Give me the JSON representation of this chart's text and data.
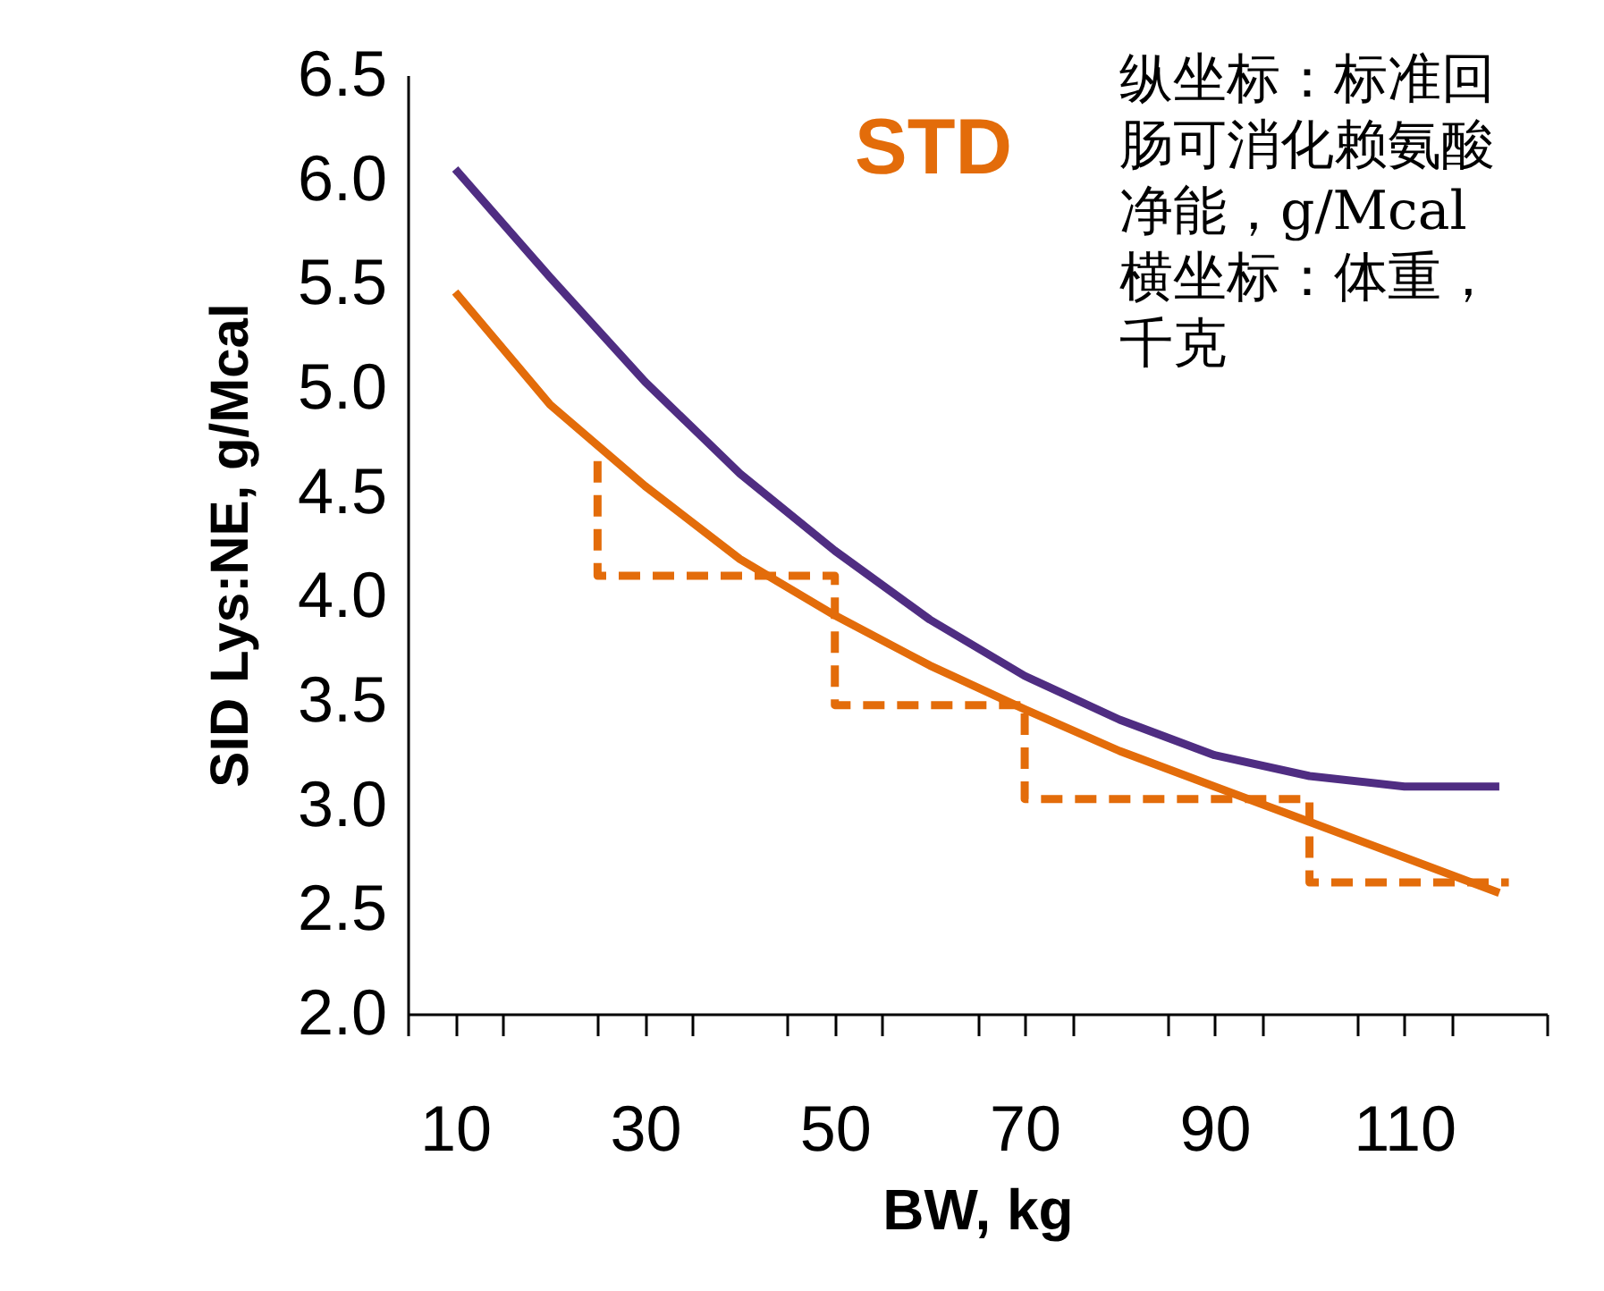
{
  "chart_data": {
    "type": "line",
    "xlabel": "BW, kg",
    "ylabel": "SID Lys:NE, g/Mcal",
    "xlim": [
      5,
      125
    ],
    "xticks": [
      {
        "value": 5,
        "label": null
      },
      10,
      {
        "value": 15,
        "label": null
      },
      {
        "value": 25,
        "label": null
      },
      30,
      {
        "value": 35,
        "label": null
      },
      {
        "value": 45,
        "label": null
      },
      50,
      {
        "value": 55,
        "label": null
      },
      {
        "value": 65,
        "label": null
      },
      70,
      {
        "value": 75,
        "label": null
      },
      {
        "value": 85,
        "label": null
      },
      90,
      {
        "value": 95,
        "label": null
      },
      {
        "value": 105,
        "label": null
      },
      110,
      {
        "value": 115,
        "label": null
      },
      {
        "value": 125,
        "label": null
      }
    ],
    "ylim": [
      2.0,
      6.5
    ],
    "yticks": [
      {
        "value": 2,
        "label": "2.0"
      },
      {
        "value": 2.5,
        "label": "2.5"
      },
      {
        "value": 3,
        "label": "3.0"
      },
      {
        "value": 3.5,
        "label": "3.5"
      },
      {
        "value": 4,
        "label": "4.0"
      },
      {
        "value": 4.5,
        "label": "4.5"
      },
      {
        "value": 5,
        "label": "5.0"
      },
      {
        "value": 5.5,
        "label": "5.5"
      },
      {
        "value": 6,
        "label": "6.0"
      },
      {
        "value": 6.5,
        "label": "6.5"
      }
    ],
    "series": [
      {
        "color": "#4f2d82",
        "x": [
          10,
          20,
          30,
          40,
          50,
          60,
          70,
          80,
          90,
          100,
          110,
          120
        ],
        "values": [
          6.05,
          5.53,
          5.03,
          4.59,
          4.22,
          3.89,
          3.62,
          3.41,
          3.24,
          3.14,
          3.09,
          3.09
        ]
      },
      {
        "name": "STD",
        "color": "#e36c0a",
        "x": [
          10,
          20,
          30,
          40,
          50,
          60,
          70,
          80,
          90,
          100,
          110,
          120
        ],
        "values": [
          5.46,
          4.92,
          4.53,
          4.18,
          3.91,
          3.67,
          3.46,
          3.26,
          3.09,
          2.92,
          2.75,
          2.58
        ]
      },
      {
        "color": "#e36c0a",
        "line_style": "dashed",
        "x": [
          25,
          25,
          50,
          50,
          70,
          70,
          100,
          100,
          121
        ],
        "values": [
          4.65,
          4.1,
          4.1,
          3.48,
          3.48,
          3.03,
          3.03,
          2.63,
          2.63
        ]
      }
    ],
    "annotations": [
      "纵坐标：标准回肠可消化赖氨酸净能，g/Mcal",
      "横坐标：体重，千克"
    ]
  }
}
